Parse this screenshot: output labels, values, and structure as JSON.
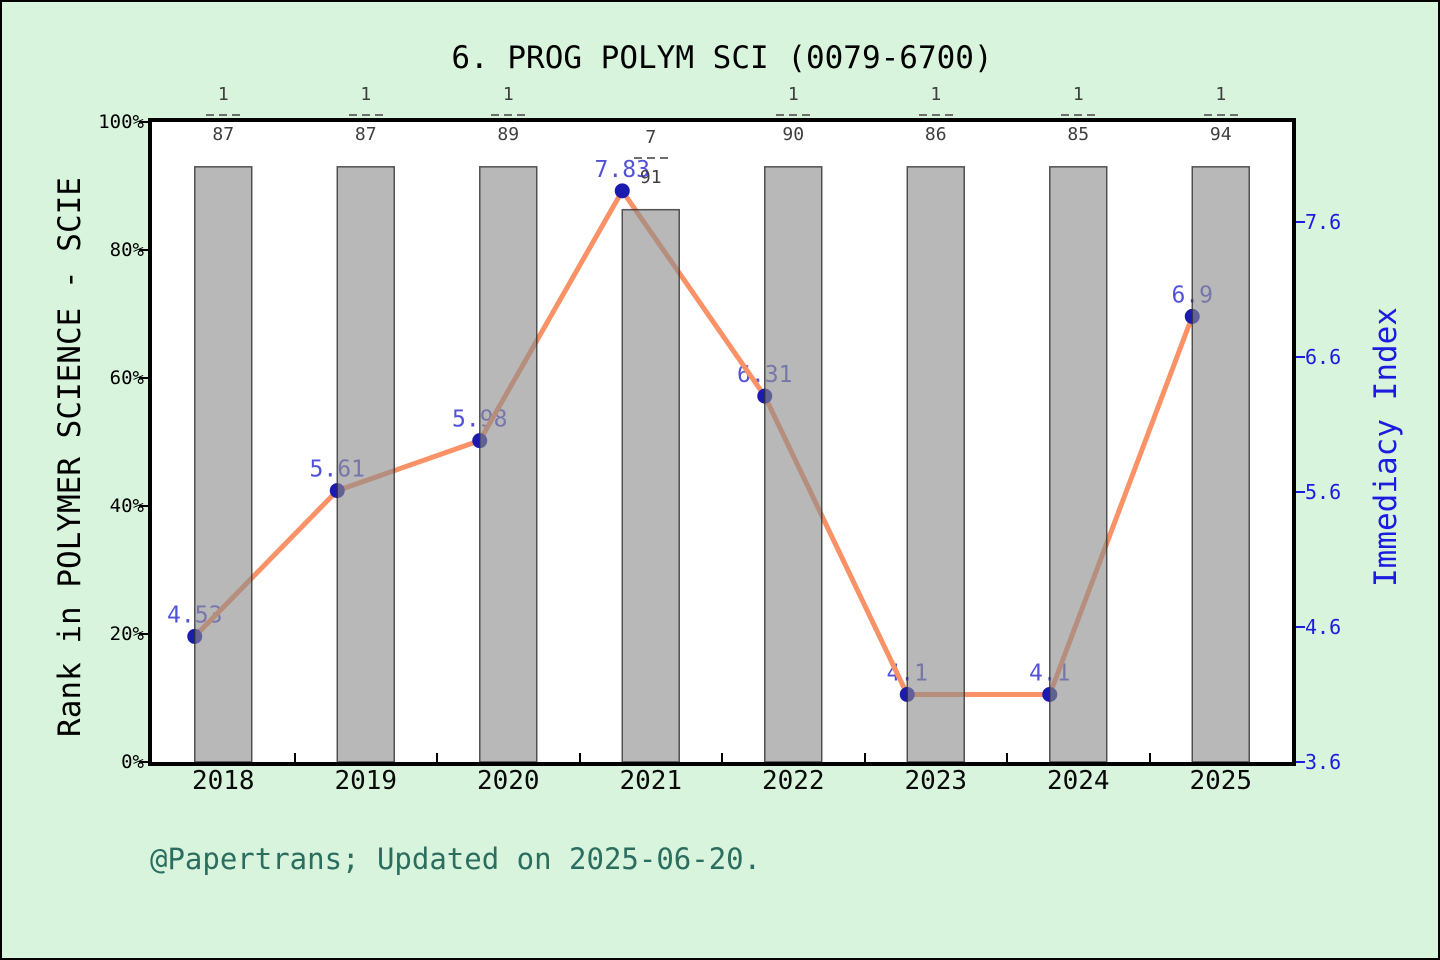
{
  "figure": {
    "title": "6. PROG POLYM SCI (0079-6700)",
    "footer": "@Papertrans; Updated on 2025-06-20.",
    "background": "#d8f4dc"
  },
  "chart_data": {
    "type": "bar",
    "subtype": "dual-axis bar+line",
    "title": "6. PROG POLYM SCI (0079-6700)",
    "categories": [
      "2018",
      "2019",
      "2020",
      "2021",
      "2022",
      "2023",
      "2024",
      "2025"
    ],
    "grid": false,
    "legend_position": "none",
    "left_axis": {
      "label": "Rank in POLYMER SCIENCE - SCIE",
      "ticks": [
        "0%",
        "20%",
        "40%",
        "60%",
        "80%",
        "100%"
      ],
      "tick_values": [
        0,
        20,
        40,
        60,
        80,
        100
      ],
      "range": [
        0,
        100
      ]
    },
    "right_axis": {
      "label": "Immediacy Index",
      "ticks": [
        "3.6",
        "4.6",
        "5.6",
        "6.6",
        "7.6"
      ],
      "tick_values": [
        3.6,
        4.6,
        5.6,
        6.6,
        7.6
      ],
      "range": [
        3.6,
        8.34
      ]
    },
    "series": [
      {
        "name": "Rank in POLYMER SCIENCE - SCIE",
        "type": "bar",
        "axis": "left",
        "rank_fractions": [
          {
            "numerator": "1",
            "denominator": "87"
          },
          {
            "numerator": "1",
            "denominator": "87"
          },
          {
            "numerator": "1",
            "denominator": "89"
          },
          {
            "numerator": "7",
            "denominator": "91"
          },
          {
            "numerator": "1",
            "denominator": "90"
          },
          {
            "numerator": "1",
            "denominator": "86"
          },
          {
            "numerator": "1",
            "denominator": "85"
          },
          {
            "numerator": "1",
            "denominator": "94"
          }
        ],
        "bar_height_pct": [
          93,
          93,
          93,
          86.3,
          93,
          93,
          93,
          93
        ]
      },
      {
        "name": "Immediacy Index",
        "type": "line",
        "axis": "right",
        "values": [
          4.53,
          5.61,
          5.98,
          7.83,
          6.31,
          4.1,
          4.1,
          6.9
        ],
        "point_labels": [
          "4.53",
          "5.61",
          "5.98",
          "7.83",
          "6.31",
          "4.1",
          "4.1",
          "6.9"
        ]
      }
    ]
  },
  "colors": {
    "background": "#d8f4dc",
    "plot_background": "#ffffff",
    "bar_fill": "#8c8c8c",
    "bar_fill_opacity": 0.62,
    "bar_border": "#2e2e2e",
    "line": "#fa9268",
    "dot": "#1b1bb0",
    "point_label": "#4343d6",
    "right_axis_text": "#1c1ce0",
    "fraction_text": "#3e3e3e",
    "footer_text": "#2b6e60",
    "title_text": "#000000"
  }
}
